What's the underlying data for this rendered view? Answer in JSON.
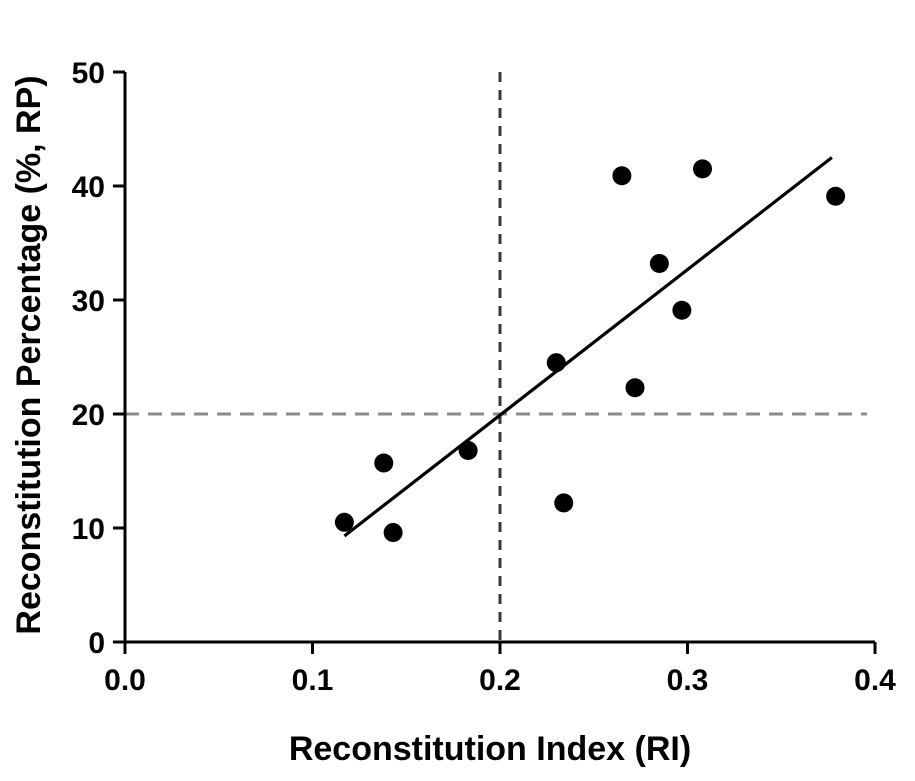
{
  "chart_data": {
    "type": "scatter",
    "xlabel": "Reconstitution Index (RI)",
    "ylabel": "Reconstitution Percentage (%, RP)",
    "xlim": [
      0.0,
      0.4
    ],
    "ylim": [
      0,
      50
    ],
    "xticks": [
      "0.0",
      "0.1",
      "0.2",
      "0.3",
      "0.4"
    ],
    "yticks": [
      "0",
      "10",
      "20",
      "30",
      "40",
      "50"
    ],
    "grid": false,
    "points": [
      {
        "x": 0.117,
        "y": 10.5
      },
      {
        "x": 0.138,
        "y": 15.7
      },
      {
        "x": 0.143,
        "y": 9.6
      },
      {
        "x": 0.183,
        "y": 16.8
      },
      {
        "x": 0.23,
        "y": 24.5
      },
      {
        "x": 0.234,
        "y": 12.2
      },
      {
        "x": 0.265,
        "y": 40.9
      },
      {
        "x": 0.272,
        "y": 22.3
      },
      {
        "x": 0.285,
        "y": 33.2
      },
      {
        "x": 0.297,
        "y": 29.1
      },
      {
        "x": 0.308,
        "y": 41.5
      },
      {
        "x": 0.379,
        "y": 39.1
      }
    ],
    "trendline": {
      "x": [
        0.117,
        0.377
      ],
      "y": [
        9.3,
        42.5
      ]
    },
    "reference_lines": {
      "vertical_x": 0.2,
      "horizontal_y": 20
    },
    "colors": {
      "points": "#000000",
      "trendline": "#000000",
      "vertical_reference": "#3a3a3a",
      "horizontal_reference": "#8a8a8a"
    }
  }
}
